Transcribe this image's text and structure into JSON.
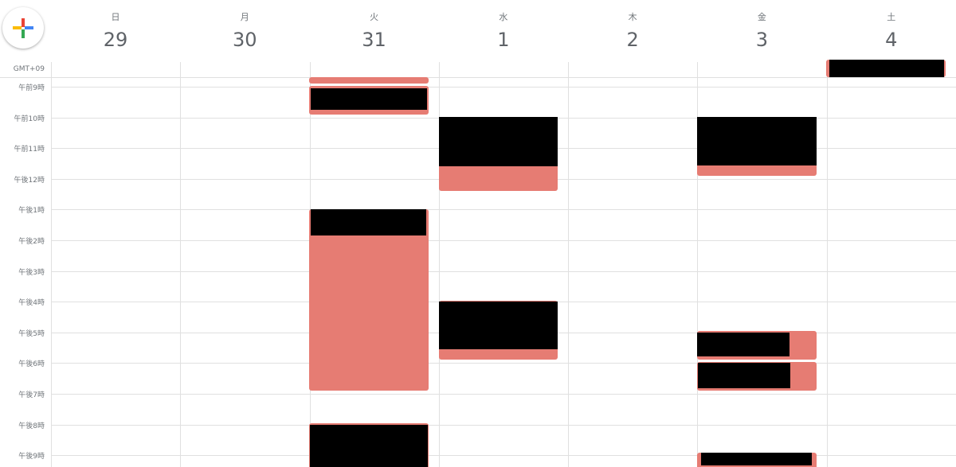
{
  "header": {
    "timezone": "GMT+09",
    "days": [
      {
        "weekday": "日",
        "date": 29
      },
      {
        "weekday": "月",
        "date": 30
      },
      {
        "weekday": "火",
        "date": 31
      },
      {
        "weekday": "水",
        "date": 1
      },
      {
        "weekday": "木",
        "date": 2
      },
      {
        "weekday": "金",
        "date": 3
      },
      {
        "weekday": "土",
        "date": 4
      }
    ]
  },
  "hours": [
    "午前9時",
    "午前10時",
    "午前11時",
    "午後12時",
    "午後1時",
    "午後2時",
    "午後3時",
    "午後4時",
    "午後5時",
    "午後6時",
    "午後7時",
    "午後8時",
    "午後9時"
  ]
}
